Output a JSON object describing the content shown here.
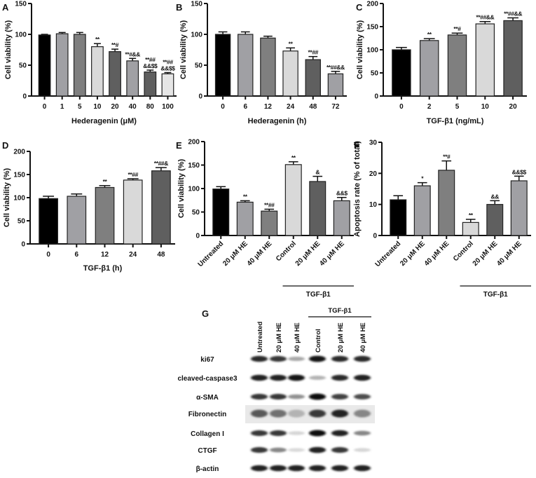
{
  "chart_data": [
    {
      "panel": "A",
      "type": "bar",
      "categories": [
        "0",
        "1",
        "5",
        "10",
        "20",
        "40",
        "80",
        "100"
      ],
      "values": [
        99,
        101,
        100,
        80,
        72,
        57,
        39,
        36
      ],
      "errors": [
        1,
        2,
        3,
        5,
        4,
        4,
        3,
        2
      ],
      "annotations": [
        [],
        [],
        [],
        [
          "**"
        ],
        [
          "**#"
        ],
        [
          "**#&&"
        ],
        [
          "**##",
          "&&$$"
        ],
        [
          "**##",
          "&&$$"
        ]
      ],
      "colors": [
        "#000000",
        "#a0a0a4",
        "#7f7f7f",
        "#d9d9d9",
        "#5f5f5f",
        "#a0a0a4",
        "#5f5f5f",
        "#e6e6e6"
      ],
      "xlabel": "Hederagenin (μM)",
      "ylabel": "Cell viability (%)",
      "ylim": [
        0,
        150
      ],
      "yticks": [
        0,
        50,
        100,
        150
      ]
    },
    {
      "panel": "B",
      "type": "bar",
      "categories": [
        "0",
        "6",
        "12",
        "24",
        "48",
        "72"
      ],
      "values": [
        100,
        100,
        94,
        73,
        59,
        36
      ],
      "errors": [
        4,
        4,
        3,
        5,
        5,
        4
      ],
      "annotations": [
        [],
        [],
        [],
        [
          "**"
        ],
        [
          "**##"
        ],
        [
          "**##&&"
        ]
      ],
      "colors": [
        "#000000",
        "#a0a0a4",
        "#7f7f7f",
        "#d9d9d9",
        "#5f5f5f",
        "#a0a0a4"
      ],
      "xlabel": "Hederagenin (h)",
      "ylabel": "Cell viability (%)",
      "ylim": [
        0,
        150
      ],
      "yticks": [
        0,
        50,
        100,
        150
      ]
    },
    {
      "panel": "C",
      "type": "bar",
      "categories": [
        "0",
        "2",
        "5",
        "10",
        "20"
      ],
      "values": [
        100,
        120,
        132,
        156,
        163
      ],
      "errors": [
        5,
        4,
        4,
        5,
        6
      ],
      "annotations": [
        [],
        [
          "**"
        ],
        [
          "**#"
        ],
        [
          "**##&&"
        ],
        [
          "**##&&"
        ]
      ],
      "colors": [
        "#000000",
        "#a0a0a4",
        "#7f7f7f",
        "#d9d9d9",
        "#5f5f5f"
      ],
      "xlabel": "TGF-β1 (ng/mL)",
      "ylabel": "Cell viability (%)",
      "ylim": [
        0,
        200
      ],
      "yticks": [
        0,
        50,
        100,
        150,
        200
      ]
    },
    {
      "panel": "D",
      "type": "bar",
      "categories": [
        "0",
        "6",
        "12",
        "24",
        "48"
      ],
      "values": [
        98,
        103,
        122,
        138,
        158
      ],
      "errors": [
        5,
        5,
        4,
        3,
        7
      ],
      "annotations": [
        [],
        [],
        [
          "**"
        ],
        [
          "**##"
        ],
        [
          "**##&"
        ]
      ],
      "colors": [
        "#000000",
        "#a0a0a4",
        "#7f7f7f",
        "#d9d9d9",
        "#5f5f5f"
      ],
      "xlabel": "TGF-β1 (h)",
      "ylabel": "Cell viability (%)",
      "ylim": [
        0,
        200
      ],
      "yticks": [
        0,
        50,
        100,
        150,
        200
      ]
    },
    {
      "panel": "E",
      "type": "bar",
      "categories": [
        "Untreated",
        "20 μM HE",
        "40 μM HE",
        "Control",
        "20 μM HE",
        "40 μM HE"
      ],
      "values": [
        99,
        71,
        52,
        151,
        115,
        74
      ],
      "errors": [
        5,
        3,
        4,
        6,
        11,
        7
      ],
      "annotations": [
        [],
        [
          "**"
        ],
        [
          "**##"
        ],
        [
          "**"
        ],
        [
          "&"
        ],
        [
          "&&$"
        ]
      ],
      "colors": [
        "#000000",
        "#a0a0a4",
        "#7f7f7f",
        "#d9d9d9",
        "#5f5f5f",
        "#a0a0a4"
      ],
      "xlabel": "",
      "ylabel": "Cell viability (%)",
      "group_label": "TGF-β1",
      "ylim": [
        0,
        200
      ],
      "yticks": [
        0,
        50,
        100,
        150,
        200
      ]
    },
    {
      "panel": "F",
      "type": "bar",
      "categories": [
        "Untreated",
        "20 μM HE",
        "40 μM HE",
        "Control",
        "20 μM HE",
        "40 μM HE"
      ],
      "values": [
        11.5,
        16,
        21,
        4.2,
        10,
        17.6
      ],
      "errors": [
        1.3,
        1,
        3,
        1,
        1.2,
        1.5
      ],
      "annotations": [
        [],
        [
          "*"
        ],
        [
          "**#"
        ],
        [
          "**"
        ],
        [
          "&&"
        ],
        [
          "&&$$"
        ]
      ],
      "colors": [
        "#000000",
        "#a0a0a4",
        "#7f7f7f",
        "#d9d9d9",
        "#5f5f5f",
        "#a0a0a4"
      ],
      "xlabel": "",
      "ylabel": "Apoptosis rate (% of total)",
      "group_label": "TGF-β1",
      "ylim": [
        0,
        30
      ],
      "yticks": [
        0,
        10,
        20,
        30
      ]
    }
  ],
  "blot": {
    "panel": "G",
    "group_label": "TGF-β1",
    "lanes": [
      "Untreated",
      "20 μM HE",
      "40 μM HE",
      "Control",
      "20 μM HE",
      "40 μM HE"
    ],
    "rows": [
      {
        "label": "ki67",
        "intensity": [
          0.85,
          0.8,
          0.3,
          0.95,
          0.85,
          0.85
        ]
      },
      {
        "label": "cleaved-caspase3",
        "intensity": [
          0.9,
          0.9,
          0.95,
          0.25,
          0.85,
          0.9
        ]
      },
      {
        "label": "α-SMA",
        "intensity": [
          0.8,
          0.8,
          0.4,
          1.0,
          0.75,
          0.7
        ]
      },
      {
        "label": "Fibronectin",
        "intensity": [
          0.65,
          0.55,
          0.25,
          0.8,
          0.9,
          0.45
        ]
      },
      {
        "label": "Collagen I",
        "intensity": [
          0.8,
          0.8,
          0.1,
          1.0,
          0.9,
          0.45
        ]
      },
      {
        "label": "CTGF",
        "intensity": [
          0.8,
          0.45,
          0.08,
          0.9,
          0.8,
          0.1
        ]
      },
      {
        "label": "β-actin",
        "intensity": [
          0.9,
          0.9,
          0.9,
          0.9,
          0.9,
          0.9
        ]
      }
    ]
  }
}
